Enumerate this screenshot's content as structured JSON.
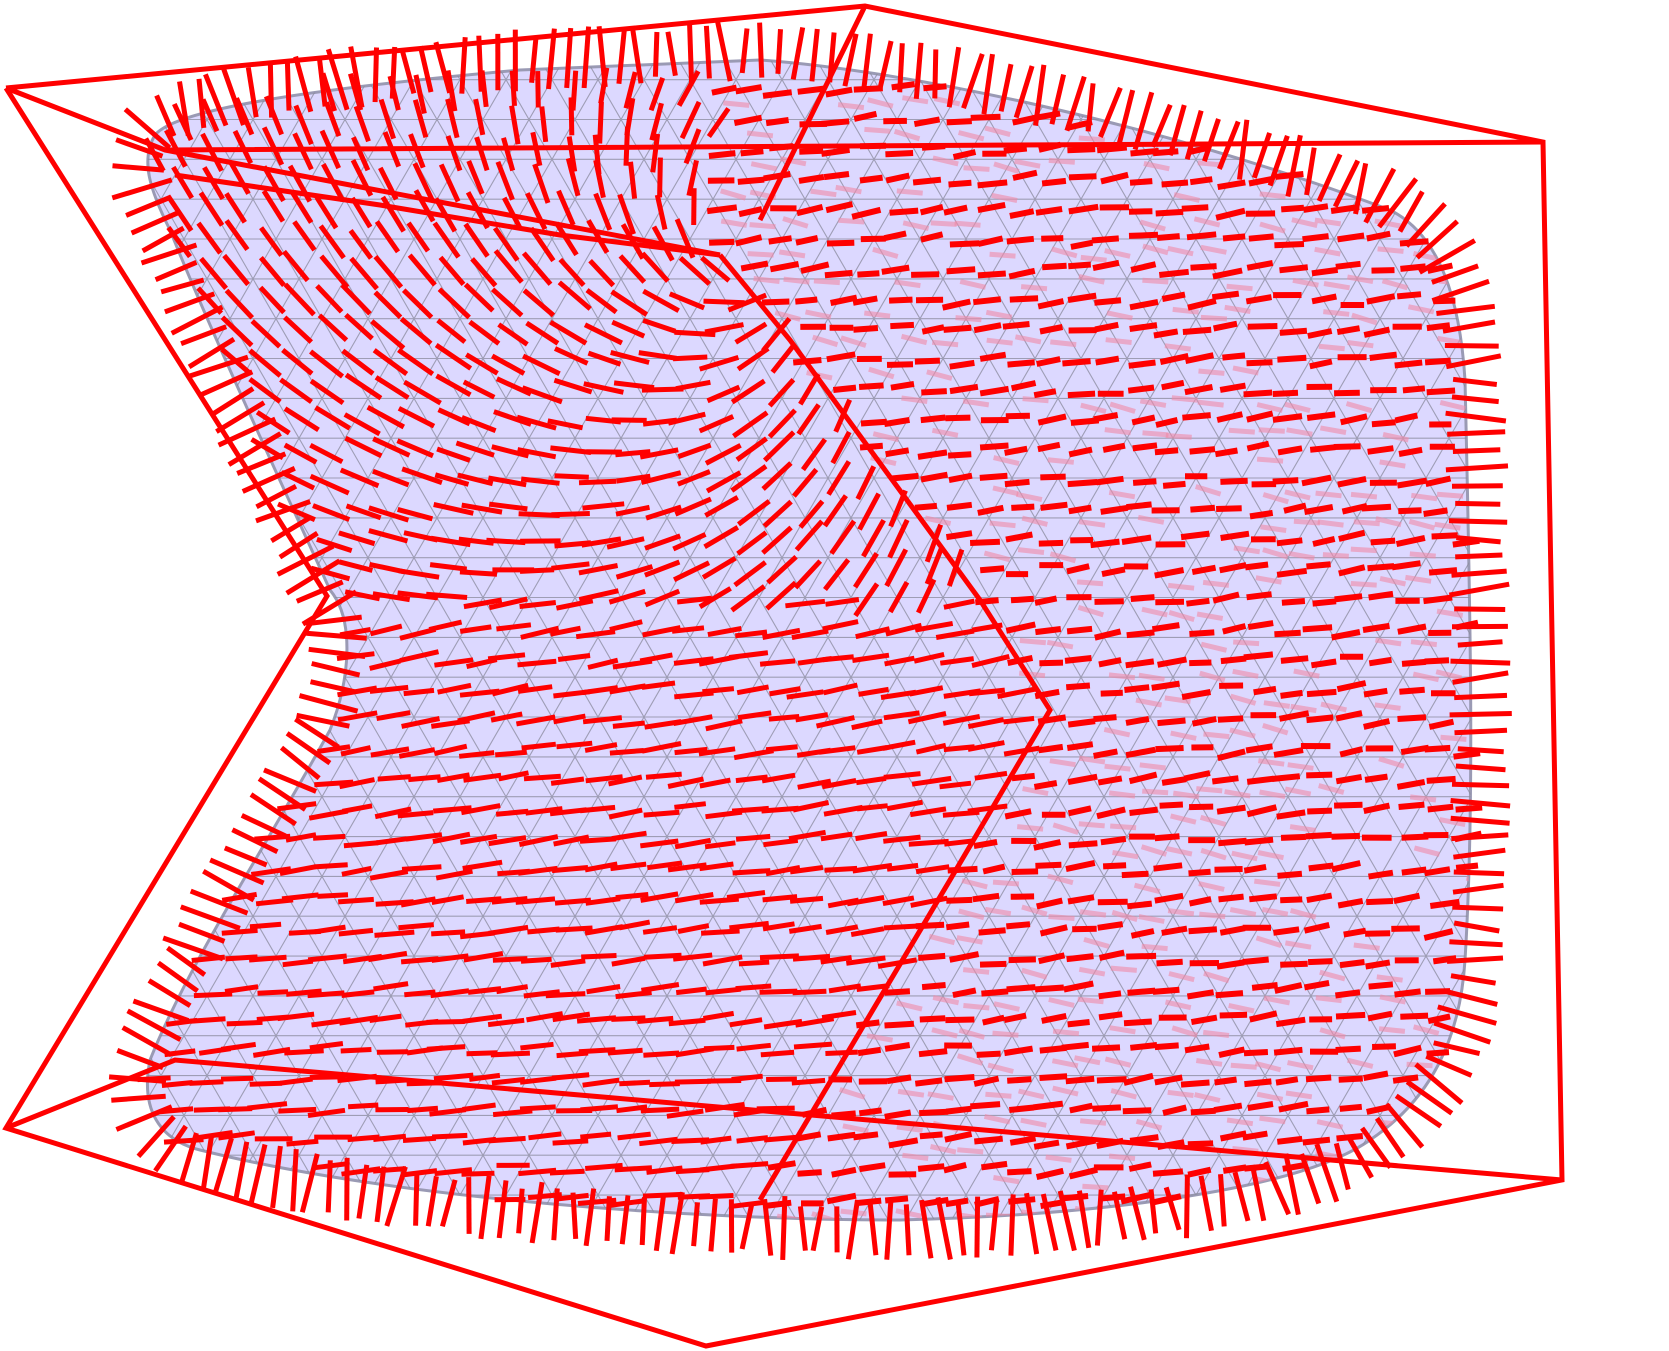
{
  "colors": {
    "background": "#ffffff",
    "frame": "#ff0000",
    "surface_fill": "#dcd8ff",
    "surface_edge": "#9a9ab4",
    "mesh": "#8a8a9c",
    "glyph": "#ff0000",
    "glyph_faint": "#f08aa8"
  },
  "scene": {
    "type": "3d-mesh-with-direction-field",
    "frame": "wireframe-box",
    "field": "orientation-glyphs"
  }
}
